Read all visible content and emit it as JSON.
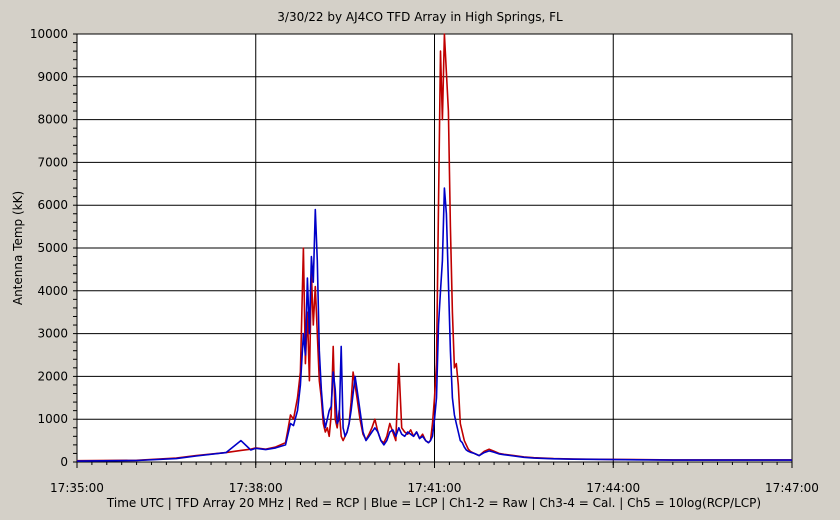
{
  "chart_data": {
    "type": "line",
    "title": "3/30/22  by  AJ4CO TFD Array  in  High Springs, FL",
    "ylabel": "Antenna Temp (kK)",
    "xlabel": "Time UTC | TFD Array 20 MHz | Red = RCP | Blue = LCP | Ch1-2 = Raw | Ch3-4 = Cal. | Ch5 = 10log(RCP/LCP)",
    "ylim": [
      0,
      10000
    ],
    "yticks": [
      0,
      1000,
      2000,
      3000,
      4000,
      5000,
      6000,
      7000,
      8000,
      9000,
      10000
    ],
    "xlim": [
      0,
      720
    ],
    "xticks": [
      0,
      180,
      360,
      540,
      720
    ],
    "xtick_labels": [
      "17:35:00",
      "17:38:00",
      "17:41:00",
      "17:44:00",
      "17:47:00"
    ],
    "grid": true,
    "series": [
      {
        "name": "RCP",
        "color": "#c00000",
        "x": [
          0,
          60,
          100,
          120,
          150,
          165,
          175,
          180,
          190,
          200,
          210,
          212,
          215,
          218,
          222,
          225,
          228,
          230,
          232,
          234,
          236,
          238,
          240,
          242,
          244,
          246,
          248,
          250,
          252,
          254,
          256,
          258,
          260,
          262,
          264,
          266,
          268,
          270,
          272,
          274,
          276,
          278,
          280,
          282,
          285,
          288,
          291,
          294,
          297,
          300,
          303,
          306,
          309,
          312,
          315,
          318,
          321,
          324,
          327,
          330,
          333,
          336,
          339,
          342,
          345,
          348,
          351,
          354,
          356,
          358,
          360,
          362,
          364,
          366,
          368,
          370,
          372,
          374,
          376,
          378,
          380,
          382,
          384,
          386,
          388,
          390,
          392,
          394,
          396,
          400,
          405,
          410,
          415,
          420,
          425,
          430,
          440,
          450,
          460,
          480,
          500,
          540,
          600,
          660,
          720
        ],
        "y": [
          30,
          40,
          90,
          150,
          220,
          270,
          300,
          330,
          300,
          350,
          450,
          700,
          1100,
          1000,
          1500,
          2100,
          5000,
          2300,
          3500,
          1900,
          4400,
          3200,
          4100,
          3000,
          1900,
          1500,
          900,
          700,
          800,
          600,
          1100,
          2700,
          1000,
          800,
          1200,
          600,
          500,
          600,
          700,
          900,
          1400,
          2100,
          1800,
          1500,
          1000,
          650,
          520,
          650,
          800,
          1000,
          700,
          500,
          450,
          600,
          900,
          700,
          500,
          2300,
          800,
          700,
          650,
          750,
          600,
          700,
          550,
          650,
          500,
          450,
          500,
          900,
          1500,
          2300,
          6000,
          9600,
          8000,
          10000,
          9100,
          8200,
          5500,
          3500,
          2200,
          2300,
          1800,
          900,
          700,
          500,
          400,
          300,
          250,
          200,
          150,
          250,
          300,
          250,
          200,
          180,
          150,
          120,
          100,
          80,
          70,
          60,
          50,
          50,
          50
        ]
      },
      {
        "name": "LCP",
        "color": "#0000c8",
        "x": [
          0,
          60,
          100,
          120,
          150,
          165,
          175,
          180,
          190,
          200,
          210,
          212,
          215,
          218,
          222,
          225,
          228,
          230,
          232,
          234,
          236,
          238,
          240,
          242,
          244,
          246,
          248,
          250,
          252,
          254,
          256,
          258,
          260,
          262,
          264,
          266,
          268,
          270,
          272,
          274,
          276,
          278,
          280,
          282,
          285,
          288,
          291,
          294,
          297,
          300,
          303,
          306,
          309,
          312,
          315,
          318,
          321,
          324,
          327,
          330,
          333,
          336,
          339,
          342,
          345,
          348,
          351,
          354,
          356,
          358,
          360,
          362,
          364,
          366,
          368,
          370,
          372,
          374,
          376,
          378,
          380,
          382,
          384,
          386,
          388,
          390,
          392,
          394,
          396,
          400,
          405,
          410,
          415,
          420,
          425,
          430,
          440,
          450,
          460,
          480,
          500,
          540,
          600,
          660,
          720
        ],
        "y": [
          20,
          35,
          80,
          140,
          220,
          500,
          280,
          320,
          290,
          330,
          400,
          600,
          900,
          850,
          1200,
          1800,
          3000,
          2500,
          4300,
          3000,
          4800,
          4200,
          5900,
          4700,
          2600,
          1700,
          1100,
          800,
          1000,
          1200,
          1300,
          2100,
          1700,
          900,
          1000,
          2700,
          800,
          600,
          700,
          900,
          1200,
          1600,
          2000,
          1700,
          1200,
          700,
          500,
          600,
          700,
          800,
          700,
          500,
          400,
          500,
          700,
          750,
          600,
          800,
          650,
          600,
          700,
          650,
          600,
          700,
          550,
          600,
          500,
          450,
          500,
          600,
          1000,
          1500,
          3200,
          4000,
          4700,
          6400,
          5800,
          4200,
          2600,
          1500,
          1100,
          900,
          700,
          500,
          450,
          350,
          280,
          250,
          230,
          200,
          150,
          220,
          260,
          230,
          190,
          170,
          140,
          110,
          90,
          75,
          65,
          55,
          45,
          45,
          45
        ]
      }
    ]
  }
}
